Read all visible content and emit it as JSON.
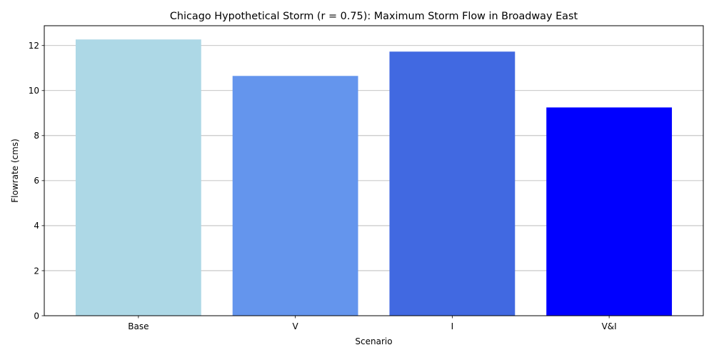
{
  "chart_data": {
    "type": "bar",
    "title": "Chicago Hypothetical Storm (r = 0.75): Maximum Storm Flow in Broadway East",
    "xlabel": "Scenario",
    "ylabel": "Flowrate (cms)",
    "categories": [
      "Base",
      "V",
      "I",
      "V&I"
    ],
    "values": [
      12.27,
      10.65,
      11.73,
      9.25
    ],
    "colors": [
      "#add8e6",
      "#6495ed",
      "#4169e1",
      "#0000ff"
    ],
    "ylim": [
      0,
      12.88
    ],
    "yticks": [
      0,
      2,
      4,
      6,
      8,
      10,
      12
    ],
    "grid": "horizontal",
    "legend": "none"
  }
}
